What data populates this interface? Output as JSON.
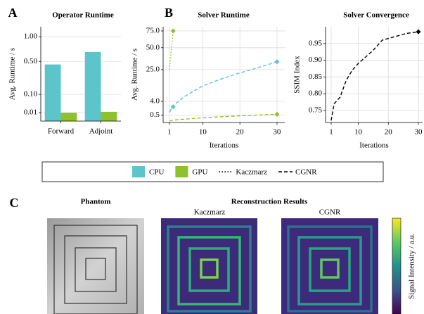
{
  "chart_data": [
    {
      "type": "bar",
      "panel_label": "A",
      "title": "Operator Runtime",
      "ylabel": "Avg. Runtime / s",
      "categories": [
        "Forward",
        "Adjoint"
      ],
      "series": [
        {
          "color": "#5ec4cc",
          "values": [
            0.45,
            0.67
          ]
        },
        {
          "color": "#8dc12d",
          "values": [
            0.01,
            0.012
          ]
        }
      ],
      "yscale": "sqrt",
      "ylim": [
        0,
        1.25
      ],
      "yticks": [
        {
          "value": 0.01,
          "label": "0.01"
        },
        {
          "value": 0.1,
          "label": "0.10"
        },
        {
          "value": 0.5,
          "label": "0.50"
        },
        {
          "value": 1,
          "label": "1.00"
        }
      ],
      "grid": true
    },
    {
      "type": "line",
      "panel_label": "B",
      "title": "Solver Runtime",
      "xlabel": "Iterations",
      "ylabel": "Avg. Runtime / s",
      "series": [
        {
          "color": "#8dc12d",
          "dash": "dotted",
          "marker": "diamond",
          "x": [
            1,
            2
          ],
          "values": [
            25,
            75
          ]
        },
        {
          "color": "#5ec4cc",
          "dash": "dotted",
          "marker": "diamond",
          "x": [
            1,
            2
          ],
          "values": [
            1.0,
            2.2
          ]
        },
        {
          "color": "#5ec4cc",
          "dash": "dashed",
          "marker": "diamond",
          "x": [
            1,
            2,
            5,
            10,
            15,
            20,
            25,
            30
          ],
          "values": [
            0.9,
            2.5,
            6,
            12,
            17,
            22,
            27,
            33
          ]
        },
        {
          "color": "#8dc12d",
          "dash": "dashed",
          "marker": "diamond",
          "x": [
            1,
            2,
            5,
            10,
            15,
            20,
            25,
            30
          ],
          "values": [
            0.02,
            0.05,
            0.1,
            0.2,
            0.3,
            0.4,
            0.5,
            0.6
          ]
        }
      ],
      "yscale": "sqrt",
      "xlim": [
        -0.7,
        32.1
      ],
      "ylim": [
        0,
        82
      ],
      "xticks": [
        1,
        10,
        20,
        30
      ],
      "yticks": [
        0.5,
        {
          "value": 4,
          "label": "4.0"
        },
        {
          "value": 25,
          "label": "25.0"
        },
        {
          "value": 50,
          "label": "50.0"
        },
        {
          "value": 75,
          "label": "75.0"
        }
      ],
      "grid": true
    },
    {
      "type": "line",
      "title": "Solver Convergence",
      "xlabel": "Iterations",
      "ylabel": "SSIM Index",
      "series": [
        {
          "color": "#000000",
          "dash": "dashed",
          "marker": "diamond",
          "x": [
            1,
            2,
            4,
            6,
            8,
            10,
            15,
            18,
            22,
            26,
            30
          ],
          "values": [
            0.72,
            0.77,
            0.79,
            0.84,
            0.87,
            0.89,
            0.93,
            0.96,
            0.97,
            0.98,
            0.985
          ]
        }
      ],
      "yscale": "linear",
      "xlim": [
        -0.86,
        31.4
      ],
      "ylim": [
        0.714,
        1.0
      ],
      "xticks": [
        1,
        10,
        20,
        30
      ],
      "yticks": [
        0.75,
        {
          "value": 0.8,
          "label": "0.80"
        },
        0.85,
        {
          "value": 0.9,
          "label": "0.90"
        },
        0.95
      ],
      "grid": true
    }
  ],
  "legend": [
    {
      "label": "CPU",
      "kind": "patch",
      "color": "#5ec4cc"
    },
    {
      "label": "GPU",
      "kind": "patch",
      "color": "#8dc12d"
    },
    {
      "label": "Kaczmarz",
      "kind": "dotted",
      "color": "#000000"
    },
    {
      "label": "CGNR",
      "kind": "dashed",
      "color": "#000000"
    }
  ],
  "panel_c": {
    "panel_label": "C",
    "phantom_title": "Phantom",
    "reconstruction_title": "Reconstruction Results",
    "kaczmarz_title": "Kaczmarz",
    "cgnr_title": "CGNR",
    "colorbar_label": "Signal Intensity / a.u."
  }
}
